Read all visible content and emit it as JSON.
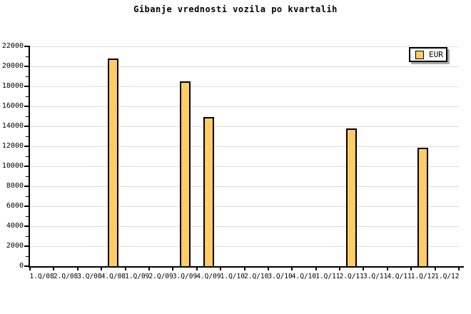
{
  "title": "Gibanje vrednosti vozila po kvartalih",
  "legend": {
    "position": "top-right",
    "items": [
      {
        "label": "EUR",
        "swatch_color": "#FFCC66"
      }
    ]
  },
  "colors": {
    "background": "#FFFFFF",
    "bar_fill": "#FFCC66",
    "bar_border": "#000000",
    "gridline": "#DDDDDD",
    "axis": "#000000",
    "text": "#000000",
    "legend_shadow": "#AAAAAA"
  },
  "chart_data": {
    "type": "bar",
    "title": "Gibanje vrednosti vozila po kvartalih",
    "xlabel": "",
    "ylabel": "",
    "categories": [
      "1.Q/08",
      "2.Q/08",
      "3.Q/08",
      "4.Q/08",
      "1.Q/09",
      "2.Q/09",
      "3.Q/09",
      "4.Q/09",
      "1.Q/10",
      "2.Q/10",
      "3.Q/10",
      "4.Q/10",
      "1.Q/11",
      "2.Q/11",
      "3.Q/11",
      "4.Q/11",
      "1.Q/12",
      "1.Q/12"
    ],
    "series": [
      {
        "name": "EUR",
        "values": [
          null,
          null,
          null,
          20800,
          null,
          null,
          18500,
          14900,
          null,
          null,
          null,
          null,
          null,
          13800,
          null,
          null,
          11850,
          null
        ]
      }
    ],
    "ylim": [
      0,
      22000
    ],
    "y_tick_step": 2000,
    "y_minor_tick_step": 1000,
    "y_ticks": [
      0,
      2000,
      4000,
      6000,
      8000,
      10000,
      12000,
      14000,
      16000,
      18000,
      20000,
      22000
    ],
    "grid": "horizontal-only",
    "legend_position": "top-right"
  }
}
